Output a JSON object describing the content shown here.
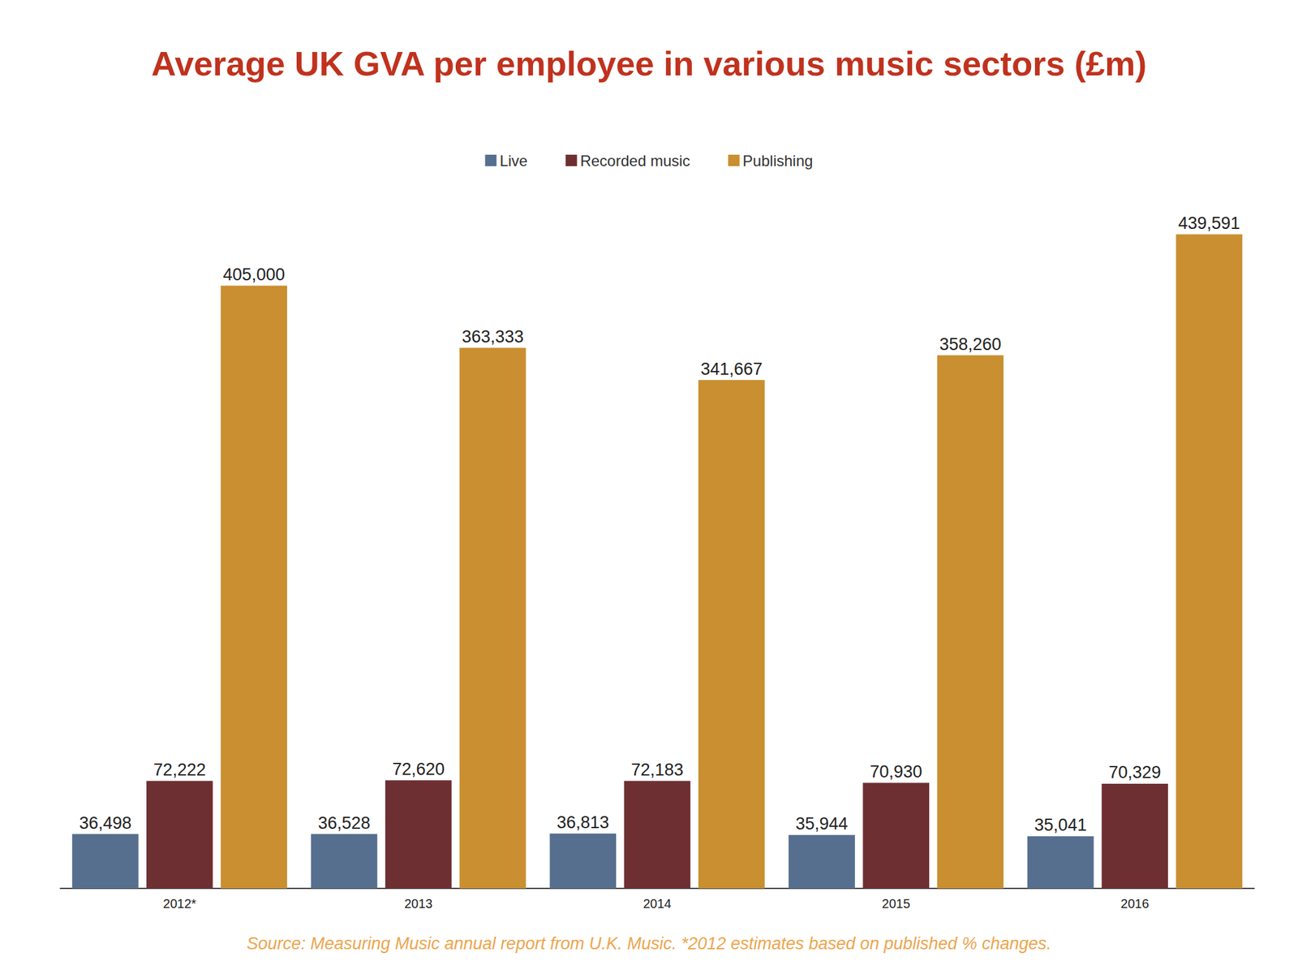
{
  "chart_data": {
    "type": "bar",
    "title": "Average UK GVA per employee in various music sectors (£m)",
    "source": "Source: Measuring Music annual report from U.K. Music. *2012 estimates based on published % changes.",
    "categories": [
      "2012*",
      "2013",
      "2014",
      "2015",
      "2016"
    ],
    "series": [
      {
        "name": "Live",
        "color": "#566f8f",
        "values": [
          36498,
          36528,
          36813,
          35944,
          35041
        ],
        "value_labels": [
          "36,498",
          "36,528",
          "36,813",
          "35,944",
          "35,041"
        ]
      },
      {
        "name": "Recorded music",
        "color": "#6e2f33",
        "values": [
          72222,
          72620,
          72183,
          70930,
          70329
        ],
        "value_labels": [
          "72,222",
          "72,620",
          "72,183",
          "70,930",
          "70,329"
        ]
      },
      {
        "name": "Publishing",
        "color": "#c98f30",
        "values": [
          405000,
          363333,
          341667,
          358260,
          439591
        ],
        "value_labels": [
          "405,000",
          "363,333",
          "341,667",
          "358,260",
          "439,591"
        ]
      }
    ],
    "ylim": [
      0,
      450000
    ],
    "yticks": [
      0,
      450000
    ],
    "grid": false,
    "legend": "top",
    "data_labels": true,
    "tick_labels": "x"
  }
}
